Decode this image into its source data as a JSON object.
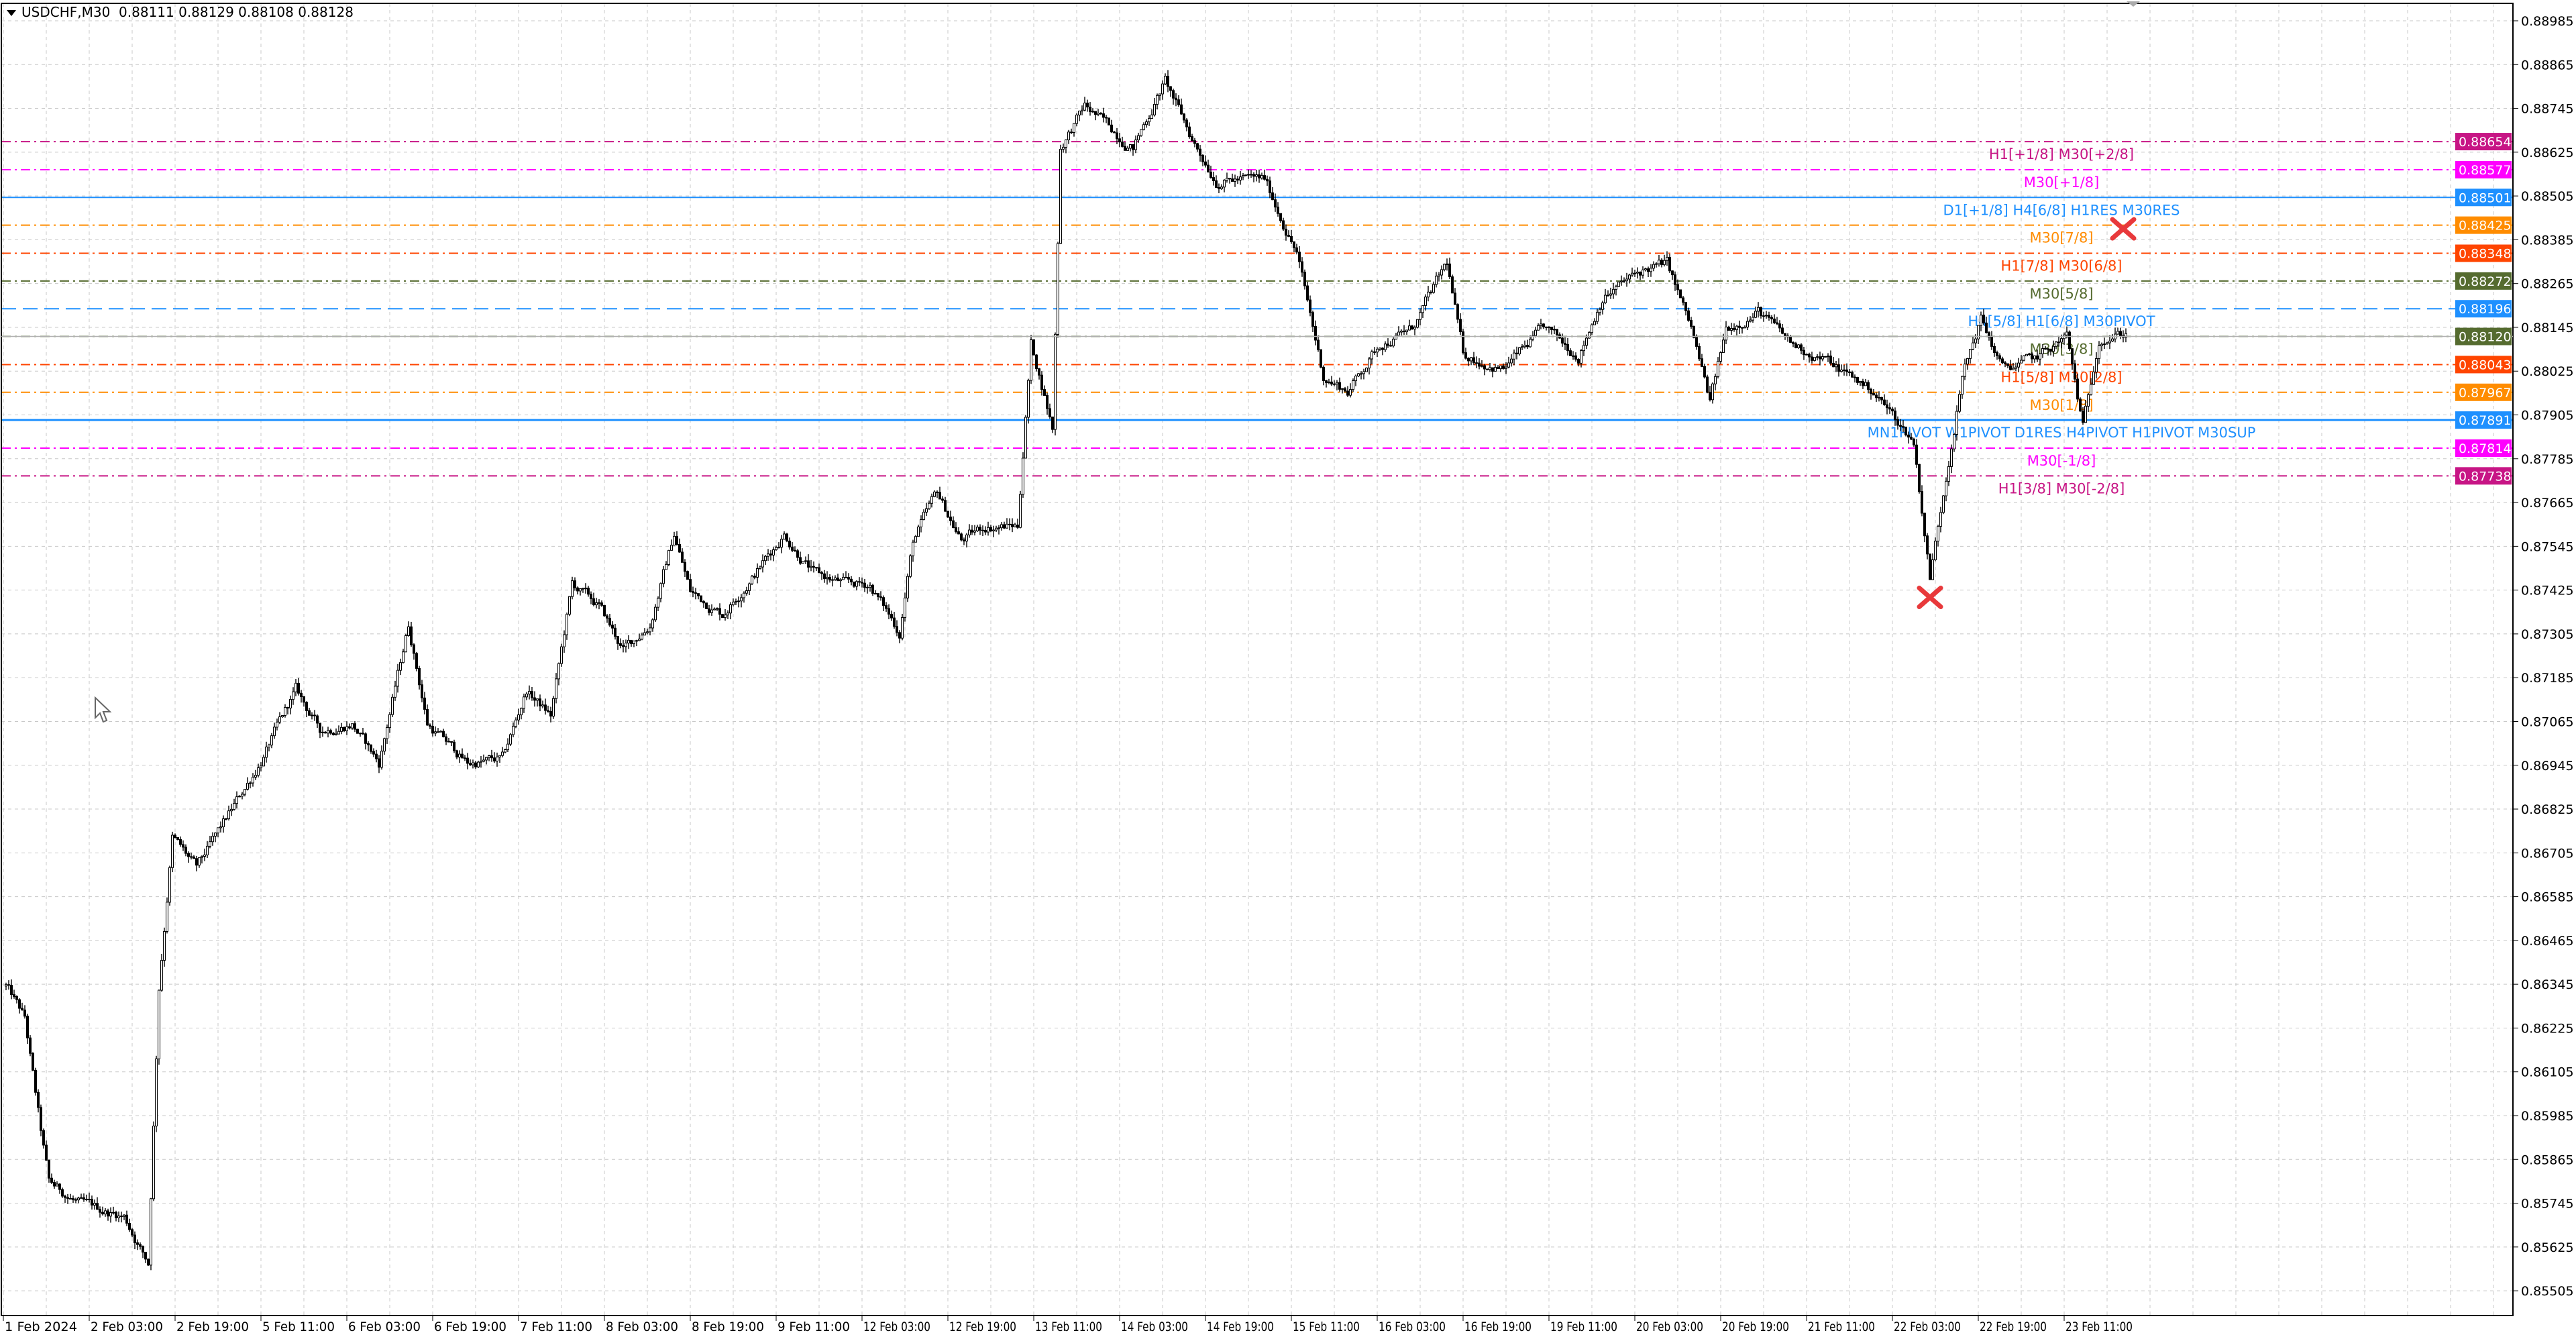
{
  "header": {
    "symbol": "USDCHF,M30",
    "ohlc": "0.88111 0.88129 0.88108 0.88128"
  },
  "chart_data": {
    "type": "candlestick",
    "symbol": "USDCHF",
    "timeframe": "M30",
    "last_bar": {
      "open": 0.88111,
      "high": 0.88129,
      "low": 0.88108,
      "close": 0.88128
    },
    "current_price": 0.8812,
    "price_ticks": [
      "0.88985",
      "0.88865",
      "0.88745",
      "0.88625",
      "0.88505",
      "0.88385",
      "0.88265",
      "0.88145",
      "0.88025",
      "0.87905",
      "0.87785",
      "0.87665",
      "0.87545",
      "0.87425",
      "0.87305",
      "0.87185",
      "0.87065",
      "0.86945",
      "0.86825",
      "0.86705",
      "0.86585",
      "0.86465",
      "0.86345",
      "0.86225",
      "0.86105",
      "0.85985",
      "0.85865",
      "0.85745",
      "0.85625",
      "0.85505"
    ],
    "time_labels": [
      "1 Feb 2024",
      "2 Feb 03:00",
      "2 Feb 19:00",
      "5 Feb 11:00",
      "6 Feb 03:00",
      "6 Feb 19:00",
      "7 Feb 11:00",
      "8 Feb 03:00",
      "8 Feb 19:00",
      "9 Feb 11:00",
      "12 Feb 03:00",
      "12 Feb 19:00",
      "13 Feb 11:00",
      "14 Feb 03:00",
      "14 Feb 19:00",
      "15 Feb 11:00",
      "16 Feb 03:00",
      "16 Feb 19:00",
      "19 Feb 11:00",
      "20 Feb 03:00",
      "20 Feb 19:00",
      "21 Feb 11:00",
      "22 Feb 03:00",
      "22 Feb 19:00",
      "23 Feb 11:00"
    ],
    "grid": true,
    "approx_price_path": [
      [
        "1 Feb 11:30",
        0.8634
      ],
      [
        "1 Feb 15:00",
        0.8625
      ],
      [
        "1 Feb 18:00",
        0.8594
      ],
      [
        "1 Feb 19:30",
        0.858
      ],
      [
        "2 Feb 01:30",
        0.8574
      ],
      [
        "2 Feb 09:30",
        0.8571
      ],
      [
        "2 Feb 14:00",
        0.8558
      ],
      [
        "2 Feb 16:00",
        0.8634
      ],
      [
        "2 Feb 18:30",
        0.8675
      ],
      [
        "2 Feb 23:00",
        0.8666
      ],
      [
        "5 Feb 05:30",
        0.8682
      ],
      [
        "5 Feb 11:30",
        0.8697
      ],
      [
        "5 Feb 17:30",
        0.8715
      ],
      [
        "5 Feb 22:00",
        0.8704
      ],
      [
        "6 Feb 04:00",
        0.8706
      ],
      [
        "6 Feb 09:00",
        0.8695
      ],
      [
        "6 Feb 14:30",
        0.8733
      ],
      [
        "6 Feb 18:00",
        0.8706
      ],
      [
        "7 Feb 01:30",
        0.8695
      ],
      [
        "7 Feb 08:00",
        0.8696
      ],
      [
        "7 Feb 12:30",
        0.8715
      ],
      [
        "7 Feb 17:00",
        0.8708
      ],
      [
        "7 Feb 21:00",
        0.8744
      ],
      [
        "8 Feb 02:00",
        0.8738
      ],
      [
        "8 Feb 06:30",
        0.8726
      ],
      [
        "8 Feb 11:30",
        0.8733
      ],
      [
        "8 Feb 16:00",
        0.8758
      ],
      [
        "8 Feb 19:00",
        0.8742
      ],
      [
        "9 Feb 01:00",
        0.8736
      ],
      [
        "9 Feb 07:00",
        0.8747
      ],
      [
        "9 Feb 12:30",
        0.8758
      ],
      [
        "9 Feb 18:00",
        0.8747
      ],
      [
        "12 Feb 00:00",
        0.8744
      ],
      [
        "12 Feb 04:30",
        0.8744
      ],
      [
        "12 Feb 10:00",
        0.8731
      ],
      [
        "12 Feb 12:30",
        0.8756
      ],
      [
        "12 Feb 17:00",
        0.8769
      ],
      [
        "12 Feb 21:30",
        0.8756
      ],
      [
        "13 Feb 02:00",
        0.876
      ],
      [
        "13 Feb 08:00",
        0.876
      ],
      [
        "13 Feb 10:30",
        0.881
      ],
      [
        "13 Feb 13:00",
        0.8796
      ],
      [
        "13 Feb 14:30",
        0.8787
      ],
      [
        "13 Feb 16:00",
        0.8864
      ],
      [
        "13 Feb 20:30",
        0.8875
      ],
      [
        "14 Feb 05:30",
        0.8864
      ],
      [
        "14 Feb 11:30",
        0.8882
      ],
      [
        "14 Feb 16:30",
        0.8866
      ],
      [
        "14 Feb 21:00",
        0.8855
      ],
      [
        "15 Feb 06:00",
        0.8855
      ],
      [
        "15 Feb 12:00",
        0.8835
      ],
      [
        "15 Feb 17:00",
        0.8801
      ],
      [
        "15 Feb 21:30",
        0.8797
      ],
      [
        "16 Feb 03:30",
        0.881
      ],
      [
        "16 Feb 09:30",
        0.8814
      ],
      [
        "16 Feb 16:00",
        0.8832
      ],
      [
        "16 Feb 19:00",
        0.8807
      ],
      [
        "19 Feb 02:30",
        0.8803
      ],
      [
        "19 Feb 10:00",
        0.8814
      ],
      [
        "19 Feb 16:30",
        0.8807
      ],
      [
        "19 Feb 21:00",
        0.8823
      ],
      [
        "20 Feb 04:30",
        0.883
      ],
      [
        "20 Feb 09:00",
        0.8832
      ],
      [
        "20 Feb 13:30",
        0.8814
      ],
      [
        "20 Feb 17:00",
        0.8794
      ],
      [
        "20 Feb 20:00",
        0.8814
      ],
      [
        "21 Feb 02:00",
        0.8819
      ],
      [
        "21 Feb 08:00",
        0.881
      ],
      [
        "21 Feb 14:00",
        0.8806
      ],
      [
        "21 Feb 23:30",
        0.8797
      ],
      [
        "22 Feb 07:00",
        0.8783
      ],
      [
        "22 Feb 10:00",
        0.8746
      ],
      [
        "22 Feb 13:00",
        0.8774
      ],
      [
        "22 Feb 16:00",
        0.8801
      ],
      [
        "22 Feb 19:30",
        0.8817
      ],
      [
        "22 Feb 23:30",
        0.8803
      ],
      [
        "23 Feb 06:00",
        0.8806
      ],
      [
        "23 Feb 11:30",
        0.8812
      ],
      [
        "23 Feb 14:30",
        0.8787
      ],
      [
        "23 Feb 17:30",
        0.8812
      ],
      [
        "23 Feb 22:30",
        0.88128
      ]
    ],
    "levels": [
      {
        "price": "0.88654",
        "label": "H1[+1/8] M30[+2/8]",
        "color": "#C71585",
        "style": "dashdot"
      },
      {
        "price": "0.88577",
        "label": "M30[+1/8]",
        "color": "#FF00FF",
        "style": "dashdot"
      },
      {
        "price": "0.88501",
        "label": "D1[+1/8] H4[6/8] H1RES M30RES",
        "color": "#1E90FF",
        "style": "solid"
      },
      {
        "price": "0.88425",
        "label": "M30[7/8]",
        "color": "#FF8C00",
        "style": "dashdot"
      },
      {
        "price": "0.88348",
        "label": "H1[7/8] M30[6/8]",
        "color": "#FF4500",
        "style": "dashdot"
      },
      {
        "price": "0.88272",
        "label": "M30[5/8]",
        "color": "#556B2F",
        "style": "dashdot"
      },
      {
        "price": "0.88196",
        "label": "H4[5/8] H1[6/8] M30PIVOT",
        "color": "#1E90FF",
        "style": "dashed"
      },
      {
        "price": "0.88120",
        "label": "M30[3/8]",
        "color": "#556B2F",
        "style": "dashdot"
      },
      {
        "price": "0.88043",
        "label": "H1[5/8] M30[2/8]",
        "color": "#FF4500",
        "style": "dashdot"
      },
      {
        "price": "0.87967",
        "label": "M30[1/8]",
        "color": "#FF8C00",
        "style": "dashdot"
      },
      {
        "price": "0.87891",
        "label": "MN1PIVOT W1PIVOT D1RES H4PIVOT H1PIVOT M30SUP",
        "color": "#1E90FF",
        "style": "solid"
      },
      {
        "price": "0.87814",
        "label": "M30[-1/8]",
        "color": "#FF00FF",
        "style": "dashdot"
      },
      {
        "price": "0.87738",
        "label": "H1[3/8] M30[-2/8]",
        "color": "#C71585",
        "style": "dashdot"
      }
    ],
    "markers": [
      {
        "type": "cross-icon",
        "time": "23 Feb 22:00",
        "price": 0.88415,
        "color": "#E8393B"
      },
      {
        "type": "cross-icon",
        "time": "22 Feb 10:00",
        "price": 0.87405,
        "color": "#E8393B"
      }
    ]
  }
}
